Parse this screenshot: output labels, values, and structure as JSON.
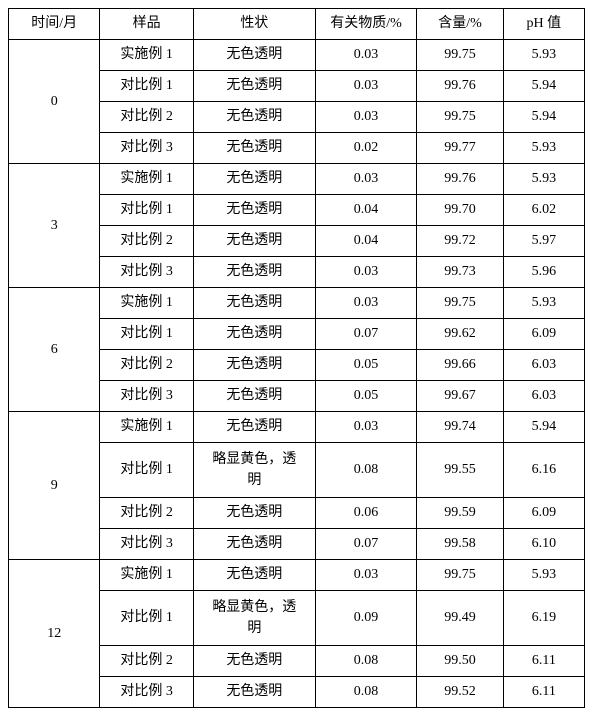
{
  "columns": {
    "time": "时间/月",
    "sample": "样品",
    "property": "性状",
    "substance": "有关物质/%",
    "content": "含量/%",
    "ph": "pH 值"
  },
  "groups": [
    {
      "time": "0",
      "rows": [
        {
          "sample": "实施例 1",
          "property": "无色透明",
          "substance": "0.03",
          "content": "99.75",
          "ph": "5.93"
        },
        {
          "sample": "对比例 1",
          "property": "无色透明",
          "substance": "0.03",
          "content": "99.76",
          "ph": "5.94"
        },
        {
          "sample": "对比例 2",
          "property": "无色透明",
          "substance": "0.03",
          "content": "99.75",
          "ph": "5.94"
        },
        {
          "sample": "对比例 3",
          "property": "无色透明",
          "substance": "0.02",
          "content": "99.77",
          "ph": "5.93"
        }
      ]
    },
    {
      "time": "3",
      "rows": [
        {
          "sample": "实施例 1",
          "property": "无色透明",
          "substance": "0.03",
          "content": "99.76",
          "ph": "5.93"
        },
        {
          "sample": "对比例 1",
          "property": "无色透明",
          "substance": "0.04",
          "content": "99.70",
          "ph": "6.02"
        },
        {
          "sample": "对比例 2",
          "property": "无色透明",
          "substance": "0.04",
          "content": "99.72",
          "ph": "5.97"
        },
        {
          "sample": "对比例 3",
          "property": "无色透明",
          "substance": "0.03",
          "content": "99.73",
          "ph": "5.96"
        }
      ]
    },
    {
      "time": "6",
      "rows": [
        {
          "sample": "实施例 1",
          "property": "无色透明",
          "substance": "0.03",
          "content": "99.75",
          "ph": "5.93"
        },
        {
          "sample": "对比例 1",
          "property": "无色透明",
          "substance": "0.07",
          "content": "99.62",
          "ph": "6.09"
        },
        {
          "sample": "对比例 2",
          "property": "无色透明",
          "substance": "0.05",
          "content": "99.66",
          "ph": "6.03"
        },
        {
          "sample": "对比例 3",
          "property": "无色透明",
          "substance": "0.05",
          "content": "99.67",
          "ph": "6.03"
        }
      ]
    },
    {
      "time": "9",
      "rows": [
        {
          "sample": "实施例 1",
          "property": "无色透明",
          "substance": "0.03",
          "content": "99.74",
          "ph": "5.94"
        },
        {
          "sample": "对比例 1",
          "property": "略显黄色，透明",
          "property_multiline": true,
          "substance": "0.08",
          "content": "99.55",
          "ph": "6.16"
        },
        {
          "sample": "对比例 2",
          "property": "无色透明",
          "substance": "0.06",
          "content": "99.59",
          "ph": "6.09"
        },
        {
          "sample": "对比例 3",
          "property": "无色透明",
          "substance": "0.07",
          "content": "99.58",
          "ph": "6.10"
        }
      ]
    },
    {
      "time": "12",
      "rows": [
        {
          "sample": "实施例 1",
          "property": "无色透明",
          "substance": "0.03",
          "content": "99.75",
          "ph": "5.93"
        },
        {
          "sample": "对比例 1",
          "property": "略显黄色，透明",
          "property_multiline": true,
          "substance": "0.09",
          "content": "99.49",
          "ph": "6.19"
        },
        {
          "sample": "对比例 2",
          "property": "无色透明",
          "substance": "0.08",
          "content": "99.50",
          "ph": "6.11"
        },
        {
          "sample": "对比例 3",
          "property": "无色透明",
          "substance": "0.08",
          "content": "99.52",
          "ph": "6.11"
        }
      ]
    }
  ]
}
